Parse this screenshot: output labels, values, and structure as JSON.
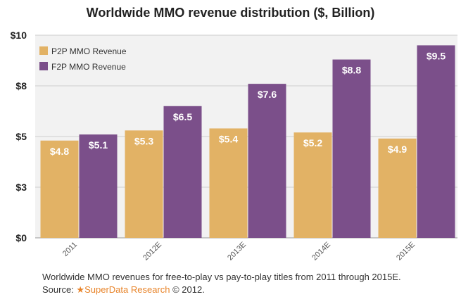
{
  "chart_data": {
    "type": "bar",
    "title": "Worldwide MMO revenue distribution ($, Billion)",
    "categories": [
      "2011",
      "2012E",
      "2013E",
      "2014E",
      "2015E"
    ],
    "series": [
      {
        "name": "P2P MMO Revenue",
        "values": [
          4.8,
          5.3,
          5.4,
          5.2,
          4.9
        ],
        "labels": [
          "$4.8",
          "$5.3",
          "$5.4",
          "$5.2",
          "$4.9"
        ],
        "color": "#e2b265"
      },
      {
        "name": "F2P MMO Revenue",
        "values": [
          5.1,
          6.5,
          7.6,
          8.8,
          9.5
        ],
        "labels": [
          "$5.1",
          "$6.5",
          "$7.6",
          "$8.8",
          "$9.5"
        ],
        "color": "#7b4f8a"
      }
    ],
    "y_ticks": [
      0,
      2.5,
      5,
      7.5,
      10
    ],
    "y_tick_labels": [
      "$0",
      "$3",
      "$5",
      "$8",
      "$10"
    ],
    "ylim": [
      0,
      10
    ],
    "grid": true,
    "legend_position": "top-left",
    "background_color": "#f2f2f2"
  },
  "caption": {
    "line1": "Worldwide MMO revenues for free-to-play vs pay-to-play titles from 2011 through 2015E.",
    "source_prefix": "Source: ",
    "source_star": "★",
    "source_name": "SuperData Research",
    "source_suffix": " © 2012."
  }
}
